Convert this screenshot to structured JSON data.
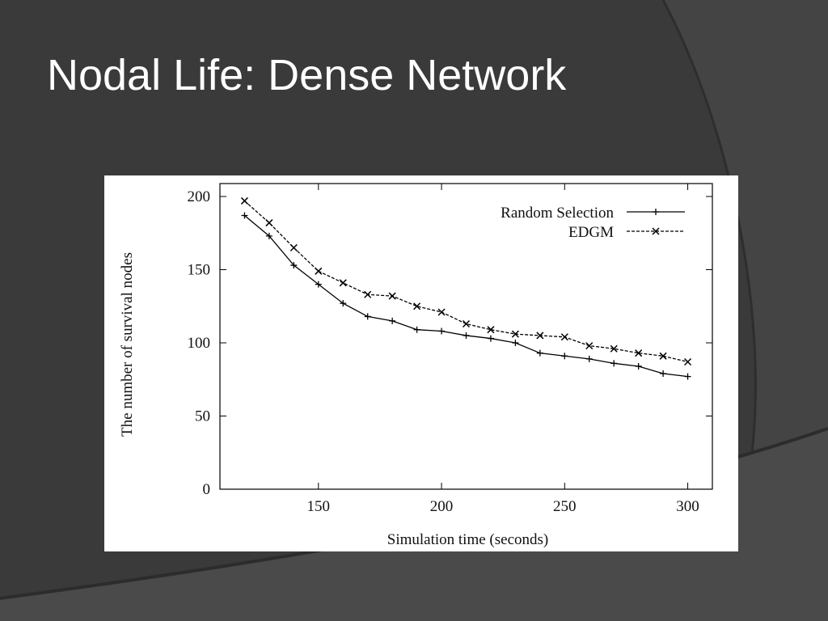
{
  "slide": {
    "title": "Nodal Life: Dense Network"
  },
  "chart_data": {
    "type": "line",
    "xlabel": "Simulation time (seconds)",
    "ylabel": "The number of survival nodes",
    "xlim": [
      110,
      310
    ],
    "ylim": [
      0,
      200
    ],
    "xticks": [
      150,
      200,
      250,
      300
    ],
    "yticks": [
      0,
      50,
      100,
      150,
      200
    ],
    "grid": false,
    "legend_position": "top-right",
    "x": [
      120,
      130,
      140,
      150,
      160,
      170,
      180,
      190,
      200,
      210,
      220,
      230,
      240,
      250,
      260,
      270,
      280,
      290,
      300
    ],
    "series": [
      {
        "name": "Random Selection",
        "marker": "+",
        "dash": "solid",
        "values": [
          187,
          173,
          153,
          140,
          127,
          118,
          115,
          109,
          108,
          105,
          103,
          100,
          93,
          91,
          89,
          86,
          84,
          79,
          77
        ]
      },
      {
        "name": "EDGM",
        "marker": "x",
        "dash": "dashed",
        "values": [
          197,
          182,
          165,
          149,
          141,
          133,
          132,
          125,
          121,
          113,
          109,
          106,
          105,
          104,
          98,
          96,
          93,
          91,
          87
        ]
      }
    ]
  }
}
